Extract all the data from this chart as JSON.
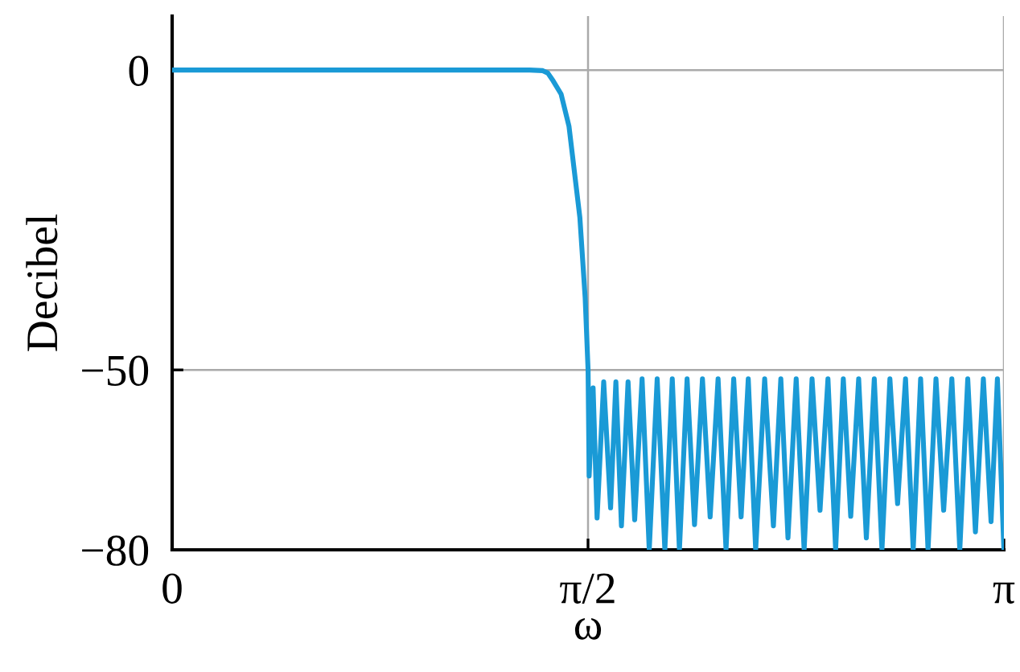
{
  "chart_data": {
    "type": "line",
    "xlabel": "ω",
    "ylabel": "Decibel",
    "xlim": [
      0,
      3.1416
    ],
    "ylim": [
      -80,
      9
    ],
    "xticks": [
      0,
      {
        "value": 1.5708,
        "label": "π/2"
      },
      {
        "value": 3.1416,
        "label": "π"
      }
    ],
    "yticks": [
      0,
      -50,
      -80
    ],
    "grid": true,
    "legend": false,
    "marker": "none",
    "line_style": "solid",
    "series": [
      {
        "color": "#1a9ad6",
        "x": [
          0,
          0.3,
          0.6,
          0.9,
          1.2,
          1.35,
          1.4,
          1.419,
          1.439,
          1.469,
          1.499,
          1.54,
          1.56,
          1.571,
          1.575,
          1.59,
          1.605,
          1.63,
          1.656,
          1.676,
          1.697,
          1.722,
          1.747,
          1.775,
          1.802,
          1.832,
          1.861,
          1.889,
          1.916,
          1.945,
          1.973,
          2.003,
          2.032,
          2.062,
          2.092,
          2.121,
          2.149,
          2.176,
          2.204,
          2.238,
          2.271,
          2.299,
          2.326,
          2.357,
          2.387,
          2.417,
          2.447,
          2.477,
          2.506,
          2.535,
          2.563,
          2.593,
          2.622,
          2.652,
          2.681,
          2.711,
          2.74,
          2.77,
          2.799,
          2.827,
          2.855,
          2.885,
          2.914,
          2.945,
          2.975,
          3.005,
          3.034,
          3.064,
          3.093,
          3.117,
          3.1416
        ],
        "values": [
          0,
          0,
          0,
          0,
          0,
          0,
          -0.1,
          -0.5,
          -1.8,
          -4,
          -9.4,
          -24.6,
          -38,
          -50,
          -67.7,
          -53,
          -74.7,
          -52,
          -73,
          -52,
          -76,
          -52,
          -75,
          -51.5,
          -80,
          -51.5,
          -80,
          -51.5,
          -80,
          -51.5,
          -75.8,
          -51.5,
          -74.5,
          -51.5,
          -80,
          -51.5,
          -74.5,
          -51.5,
          -80,
          -51.5,
          -76,
          -51.5,
          -78,
          -51.5,
          -80,
          -51.5,
          -73.4,
          -51.5,
          -80,
          -51.5,
          -74.4,
          -51.5,
          -78,
          -51.5,
          -80,
          -51.5,
          -72.3,
          -51.5,
          -80,
          -51.5,
          -80,
          -51.5,
          -73.4,
          -51.5,
          -80,
          -51.5,
          -77,
          -51.5,
          -75.3,
          -51.5,
          -80
        ]
      }
    ]
  }
}
